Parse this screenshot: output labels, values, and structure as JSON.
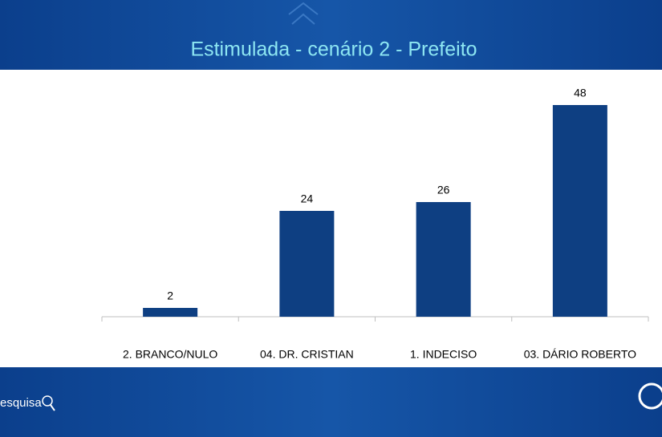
{
  "chart_data": {
    "type": "bar",
    "title": "Estimulada - cenário 2 - Prefeito",
    "categories": [
      "2. BRANCO/NULO",
      "04. DR. CRISTIAN",
      "1. INDECISO",
      "03. DÁRIO ROBERTO"
    ],
    "values": [
      2,
      24,
      26,
      48
    ],
    "color": "#0e3f82"
  },
  "footer": {
    "brand": "esquisa"
  }
}
